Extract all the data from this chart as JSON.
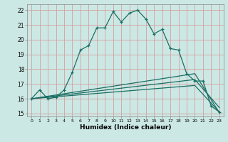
{
  "xlabel": "Humidex (Indice chaleur)",
  "bg_color": "#cce8e4",
  "grid_color": "#d4a0a0",
  "line_color": "#1a6e64",
  "xlim": [
    -0.5,
    23.5
  ],
  "ylim": [
    14.8,
    22.4
  ],
  "xticks": [
    0,
    1,
    2,
    3,
    4,
    5,
    6,
    7,
    8,
    9,
    10,
    11,
    12,
    13,
    14,
    15,
    16,
    17,
    18,
    19,
    20,
    21,
    22,
    23
  ],
  "yticks": [
    15,
    16,
    17,
    18,
    19,
    20,
    21,
    22
  ],
  "line1_x": [
    0,
    1,
    2,
    3,
    4,
    5,
    6,
    7,
    8,
    9,
    10,
    11,
    12,
    13,
    14,
    15,
    16,
    17,
    18,
    19,
    20,
    21,
    22,
    23
  ],
  "line1_y": [
    16.0,
    16.6,
    16.0,
    16.1,
    16.6,
    17.8,
    19.3,
    19.6,
    20.8,
    20.8,
    21.9,
    21.2,
    21.8,
    22.0,
    21.4,
    20.4,
    20.7,
    19.4,
    19.3,
    17.7,
    17.2,
    17.2,
    15.5,
    15.1
  ],
  "line2_x": [
    0,
    20,
    23
  ],
  "line2_y": [
    16.0,
    17.7,
    15.05
  ],
  "line3_x": [
    0,
    20,
    23
  ],
  "line3_y": [
    16.0,
    17.3,
    15.4
  ],
  "line4_x": [
    0,
    20,
    23
  ],
  "line4_y": [
    16.0,
    16.9,
    15.1
  ]
}
